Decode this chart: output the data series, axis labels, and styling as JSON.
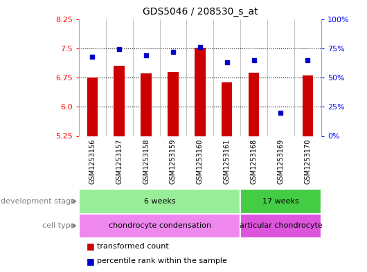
{
  "title": "GDS5046 / 208530_s_at",
  "samples": [
    "GSM1253156",
    "GSM1253157",
    "GSM1253158",
    "GSM1253159",
    "GSM1253160",
    "GSM1253161",
    "GSM1253168",
    "GSM1253169",
    "GSM1253170"
  ],
  "transformed_count": [
    6.75,
    7.05,
    6.85,
    6.9,
    7.52,
    6.62,
    6.87,
    5.25,
    6.8
  ],
  "percentile_rank": [
    68,
    74,
    69,
    72,
    76,
    63,
    65,
    20,
    65
  ],
  "ylim_left": [
    5.25,
    8.25
  ],
  "ylim_right": [
    0,
    100
  ],
  "yticks_left": [
    5.25,
    6.0,
    6.75,
    7.5,
    8.25
  ],
  "yticks_right": [
    0,
    25,
    50,
    75,
    100
  ],
  "ytick_labels_right": [
    "0%",
    "25%",
    "50%",
    "75%",
    "100%"
  ],
  "hlines": [
    6.0,
    6.75,
    7.5
  ],
  "bar_color": "#cc0000",
  "dot_color": "#0000cc",
  "bar_bottom": 5.25,
  "dev_stage_groups": [
    {
      "label": "6 weeks",
      "start": 0,
      "end": 6,
      "color": "#99ee99"
    },
    {
      "label": "17 weeks",
      "start": 6,
      "end": 9,
      "color": "#44cc44"
    }
  ],
  "cell_type_groups": [
    {
      "label": "chondrocyte condensation",
      "start": 0,
      "end": 6,
      "color": "#ee88ee"
    },
    {
      "label": "articular chondrocyte",
      "start": 6,
      "end": 9,
      "color": "#dd55dd"
    }
  ],
  "dev_stage_label": "development stage",
  "cell_type_label": "cell type",
  "legend_bar_label": "transformed count",
  "legend_dot_label": "percentile rank within the sample",
  "background_color": "#ffffff",
  "sample_header_color": "#cccccc",
  "n_samples": 9,
  "group_boundary": 6
}
